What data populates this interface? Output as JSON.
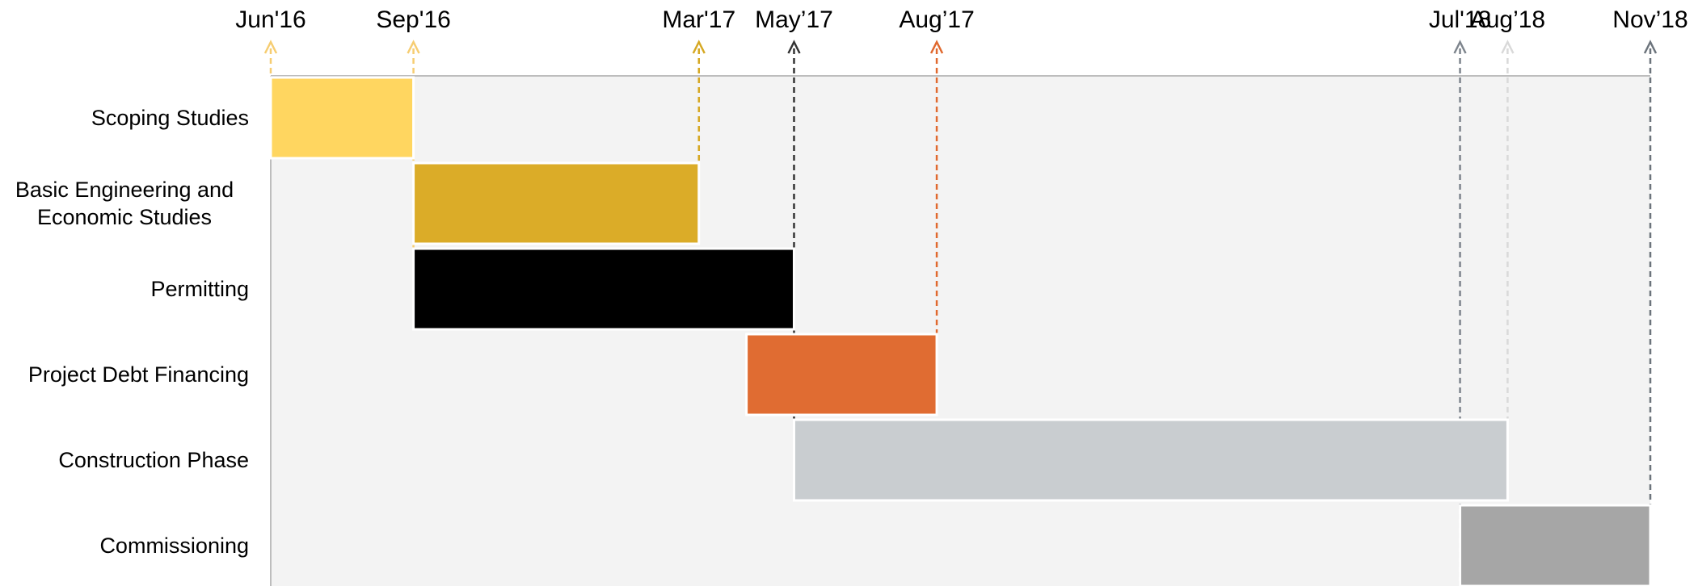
{
  "chart_data": {
    "type": "gantt",
    "xticks": [
      {
        "value": 6,
        "label": "Jun'16",
        "color": "#f6cd72"
      },
      {
        "value": 9,
        "label": "Sep'16",
        "color": "#f6cd72"
      },
      {
        "value": 15,
        "label": "Mar'17",
        "color": "#d6a823"
      },
      {
        "value": 17,
        "label": "May’17",
        "color": "#333333"
      },
      {
        "value": 20,
        "label": "Aug’17",
        "color": "#e0692f"
      },
      {
        "value": 31,
        "label": "Jul'18",
        "color": "#7e858d"
      },
      {
        "value": 32,
        "label": "Aug’18",
        "color": "#d9d9d9"
      },
      {
        "value": 35,
        "label": "Nov’18",
        "color": "#6c747c"
      }
    ],
    "xlim": [
      6,
      35
    ],
    "tasks": [
      {
        "name": "Scoping Studies",
        "start": 6,
        "end": 9,
        "color": "#ffd660"
      },
      {
        "name": "Basic Engineering and Economic Studies",
        "start": 9,
        "end": 15,
        "color": "#dbac28"
      },
      {
        "name": "Permitting",
        "start": 9,
        "end": 17,
        "color": "#000000"
      },
      {
        "name": "Project Debt Financing",
        "start": 16,
        "end": 20,
        "color": "#e06c32"
      },
      {
        "name": "Construction Phase",
        "start": 17,
        "end": 32,
        "color": "#c9cdd0"
      },
      {
        "name": "Commissioning",
        "start": 31,
        "end": 35,
        "color": "#a6a6a6"
      }
    ]
  }
}
